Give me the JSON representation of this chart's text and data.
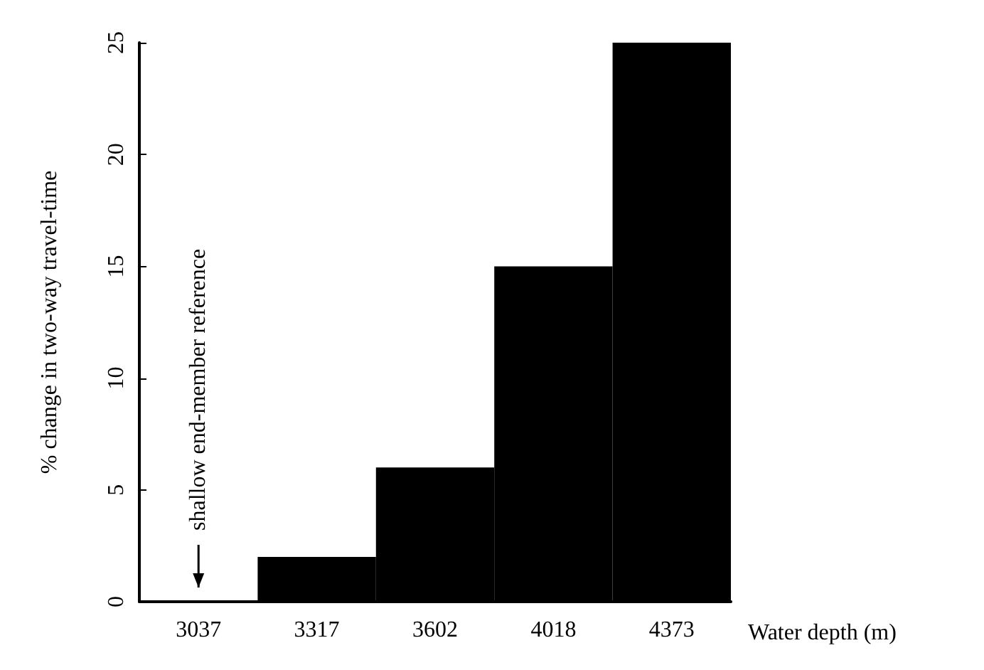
{
  "chart_data": {
    "type": "bar",
    "xlabel": "Water depth (m)",
    "ylabel": "% change in two-way travel-time",
    "categories": [
      "3037",
      "3317",
      "3602",
      "4018",
      "4373"
    ],
    "values": [
      0,
      2,
      6,
      15,
      25
    ],
    "color": "#000000",
    "ylim": [
      0,
      25
    ],
    "yticks": [
      0,
      5,
      10,
      15,
      20,
      25
    ],
    "grid": false,
    "annotations": [
      "shallow end-member reference"
    ]
  }
}
